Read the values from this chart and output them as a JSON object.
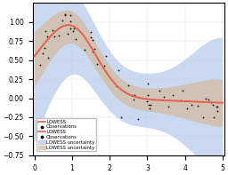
{
  "title": "",
  "xlim": [
    -0.05,
    5.05
  ],
  "ylim": [
    -0.75,
    1.25
  ],
  "xticks": [
    0,
    1,
    2,
    3,
    4,
    5
  ],
  "yticks": [
    -0.75,
    -0.5,
    -0.25,
    0.0,
    0.25,
    0.5,
    0.75,
    1.0
  ],
  "lowess_color": "#e8604c",
  "scatter_color": "#111111",
  "band1_color": "#aec6e8",
  "band2_color": "#d4b896",
  "band1_alpha": 0.65,
  "band2_alpha": 0.65,
  "background_color": "#ffffff",
  "seed": 42,
  "n_points": 60
}
